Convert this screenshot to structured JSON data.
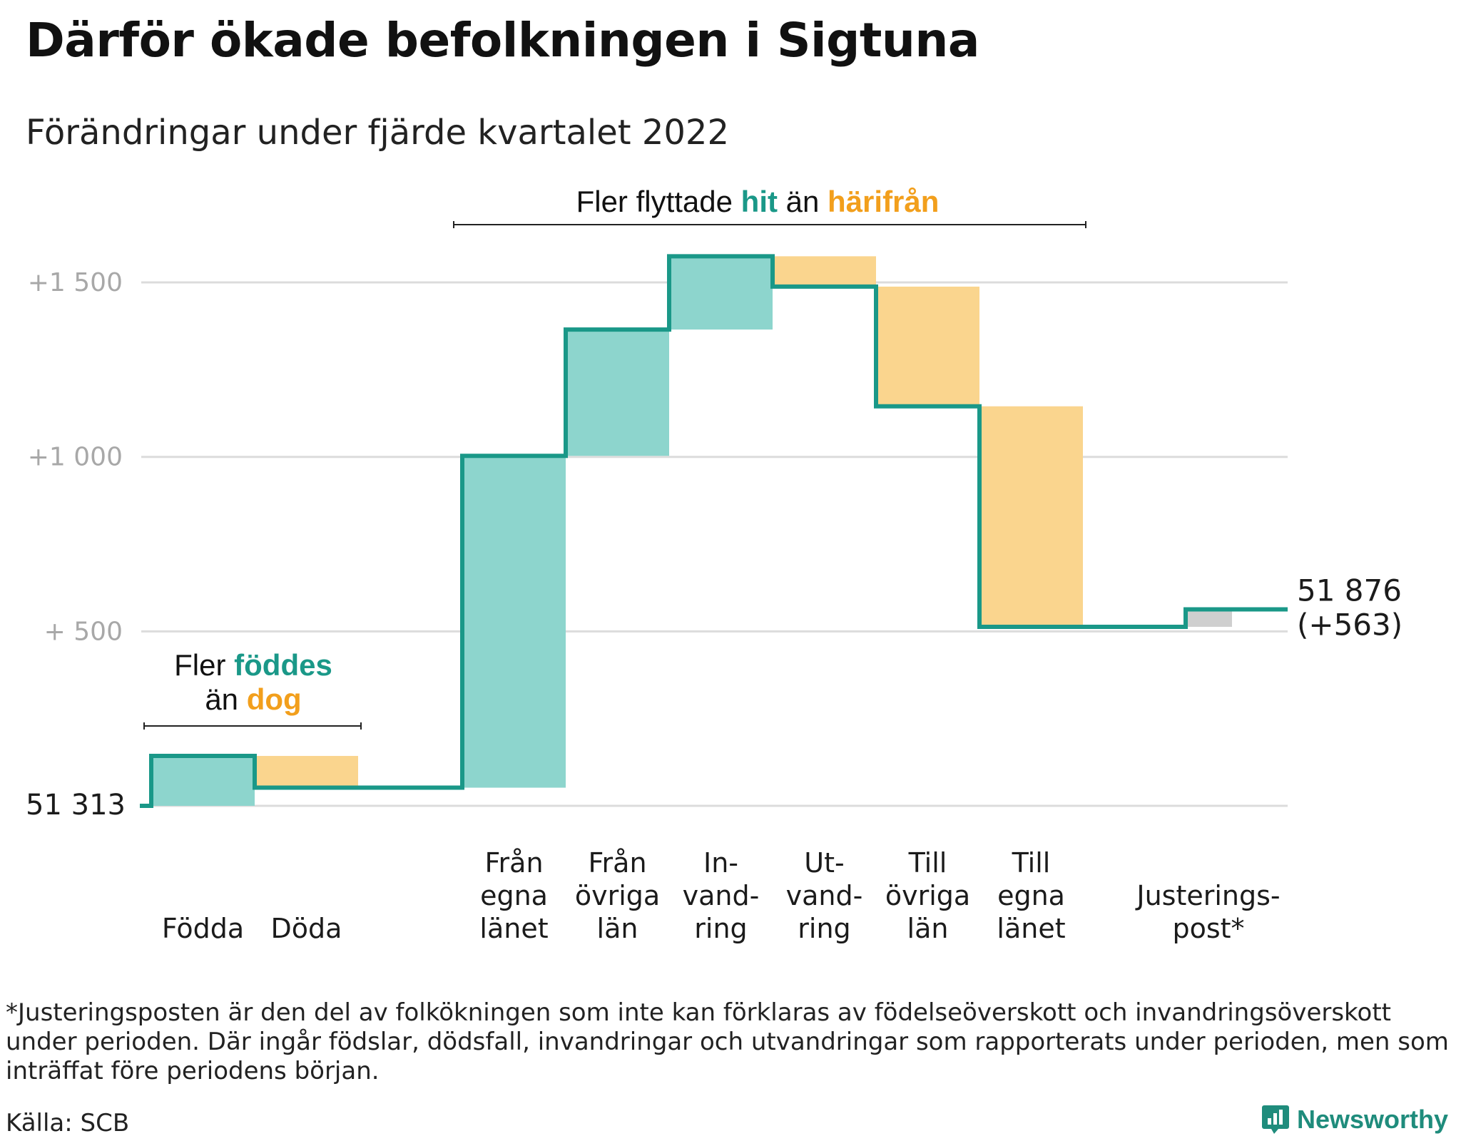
{
  "title": "Därför ökade befolkningen i Sigtuna",
  "subtitle": "Förändringar under fjärde kvartalet 2022",
  "colors": {
    "increase_fill": "#8dd5cd",
    "decrease_fill": "#fad58e",
    "adjustment_fill": "#cfcfcf",
    "step_line": "#1a9888",
    "gridline": "#dcdcdc",
    "axis_label": "#a8a8a8",
    "highlight_teal": "#1a9888",
    "highlight_orange": "#f29f1c"
  },
  "annotations": {
    "births": {
      "line1_prefix": "Fler ",
      "line1_highlight": "föddes",
      "line2_prefix": "än ",
      "line2_highlight": "dog"
    },
    "migration": {
      "prefix": "Fler flyttade ",
      "highlight1": "hit",
      "middle": " än ",
      "highlight2": "härifrån"
    }
  },
  "start_label": "51 313",
  "end_label_line1": "51 876",
  "end_label_line2": "(+563)",
  "footnote": "*Justeringsposten är den del av folkökningen som inte kan förklaras av födelseöverskott och invandringsöverskott under perioden. Där ingår födslar, dödsfall, invandringar och utvandringar som rapporterats under perioden, men som inträffat före periodens början.",
  "source": "Källa: SCB",
  "brand": "Newsworthy",
  "chart_data": {
    "type": "waterfall",
    "baseline": 51313,
    "end_value": 51876,
    "total_change": 563,
    "y_ticks": [
      {
        "value": 500,
        "label": "+ 500"
      },
      {
        "value": 1000,
        "label": "+1 000"
      },
      {
        "value": 1500,
        "label": "+1 500"
      }
    ],
    "ylim": [
      0,
      1600
    ],
    "categories": [
      {
        "label_lines": [
          "Födda"
        ],
        "start": 0,
        "end": 143,
        "kind": "increase"
      },
      {
        "label_lines": [
          "Döda"
        ],
        "start": 143,
        "end": 52,
        "kind": "decrease"
      },
      {
        "label_lines": [
          "Från",
          "egna",
          "länet"
        ],
        "start": 52,
        "end": 1003,
        "kind": "increase"
      },
      {
        "label_lines": [
          "Från",
          "övriga",
          "län"
        ],
        "start": 1003,
        "end": 1365,
        "kind": "increase"
      },
      {
        "label_lines": [
          "In-",
          "vand-",
          "ring"
        ],
        "start": 1365,
        "end": 1575,
        "kind": "increase"
      },
      {
        "label_lines": [
          "Ut-",
          "vand-",
          "ring"
        ],
        "start": 1575,
        "end": 1488,
        "kind": "decrease"
      },
      {
        "label_lines": [
          "Till",
          "övriga",
          "län"
        ],
        "start": 1488,
        "end": 1145,
        "kind": "decrease"
      },
      {
        "label_lines": [
          "Till",
          "egna",
          "länet"
        ],
        "start": 1145,
        "end": 513,
        "kind": "decrease"
      },
      {
        "label_lines": [
          "Justerings-",
          "post*"
        ],
        "start": 513,
        "end": 563,
        "kind": "adjustment"
      }
    ]
  }
}
